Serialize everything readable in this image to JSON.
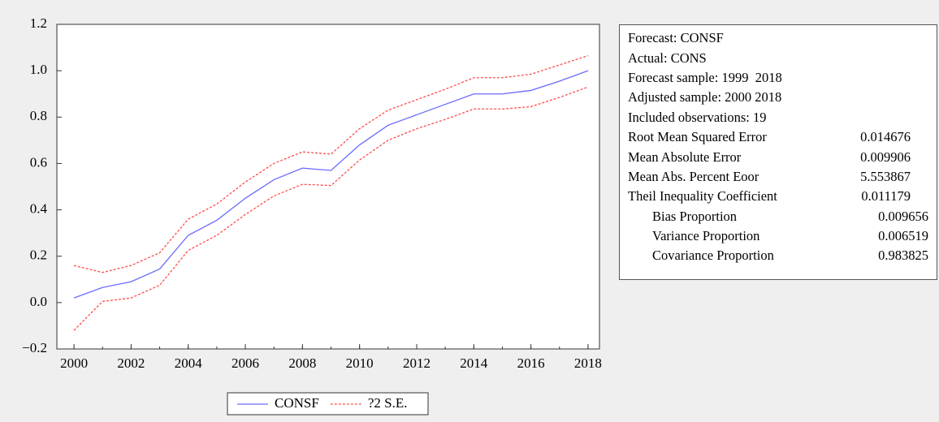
{
  "chart_data": {
    "type": "line",
    "x": [
      2000,
      2001,
      2002,
      2003,
      2004,
      2005,
      2006,
      2007,
      2008,
      2009,
      2010,
      2011,
      2012,
      2013,
      2014,
      2015,
      2016,
      2017,
      2018
    ],
    "series": [
      {
        "name": "CONSF",
        "color": "#6b6bff",
        "dash": "solid",
        "values": [
          0.02,
          0.065,
          0.09,
          0.145,
          0.29,
          0.355,
          0.45,
          0.53,
          0.58,
          0.57,
          0.68,
          0.765,
          0.81,
          0.855,
          0.9,
          0.9,
          0.915,
          0.955,
          1.0
        ]
      },
      {
        "name": "?2 S.E.",
        "color": "#ff4d4d",
        "dash": "dotted",
        "values": [
          0.16,
          0.13,
          0.16,
          0.215,
          0.36,
          0.425,
          0.52,
          0.6,
          0.65,
          0.64,
          0.75,
          0.83,
          0.875,
          0.92,
          0.97,
          0.97,
          0.985,
          1.025,
          1.065
        ],
        "lower": [
          -0.12,
          0.005,
          0.02,
          0.075,
          0.225,
          0.29,
          0.38,
          0.46,
          0.51,
          0.505,
          0.615,
          0.7,
          0.75,
          0.79,
          0.835,
          0.835,
          0.845,
          0.885,
          0.93
        ]
      }
    ],
    "xlim": [
      1999.4,
      2018.4
    ],
    "xticks": [
      2000,
      2002,
      2004,
      2006,
      2008,
      2010,
      2012,
      2014,
      2016,
      2018
    ],
    "ylim": [
      -0.2,
      1.2
    ],
    "yticks": [
      {
        "value": -0.2,
        "label": "−0.2"
      },
      {
        "value": 0,
        "label": "0.0"
      },
      0.2,
      0.4,
      0.6,
      0.8,
      {
        "value": 1,
        "label": "1.0"
      },
      1.2
    ],
    "grid": false,
    "legend": "bottom"
  },
  "stats": [
    [
      "Forecast: CONSF",
      ""
    ],
    [
      "Actual: CONS",
      ""
    ],
    [
      "Forecast sample: 1999  2018",
      ""
    ],
    [
      "Adjusted sample: 2000 2018",
      ""
    ],
    [
      "Included observations: 19",
      ""
    ],
    [
      "Root Mean Squared Error",
      "0.014676"
    ],
    [
      "Mean Absolute Error",
      "0.009906"
    ],
    [
      "Mean Abs. Percent Eoor",
      "5.553867"
    ],
    [
      "Theil Inequality Coefficient",
      "0.011179"
    ],
    [
      "Bias Proportion",
      "0.009656"
    ],
    [
      "Variance Proportion",
      "0.006519"
    ],
    [
      "Covariance Proportion",
      "0.983825"
    ]
  ]
}
